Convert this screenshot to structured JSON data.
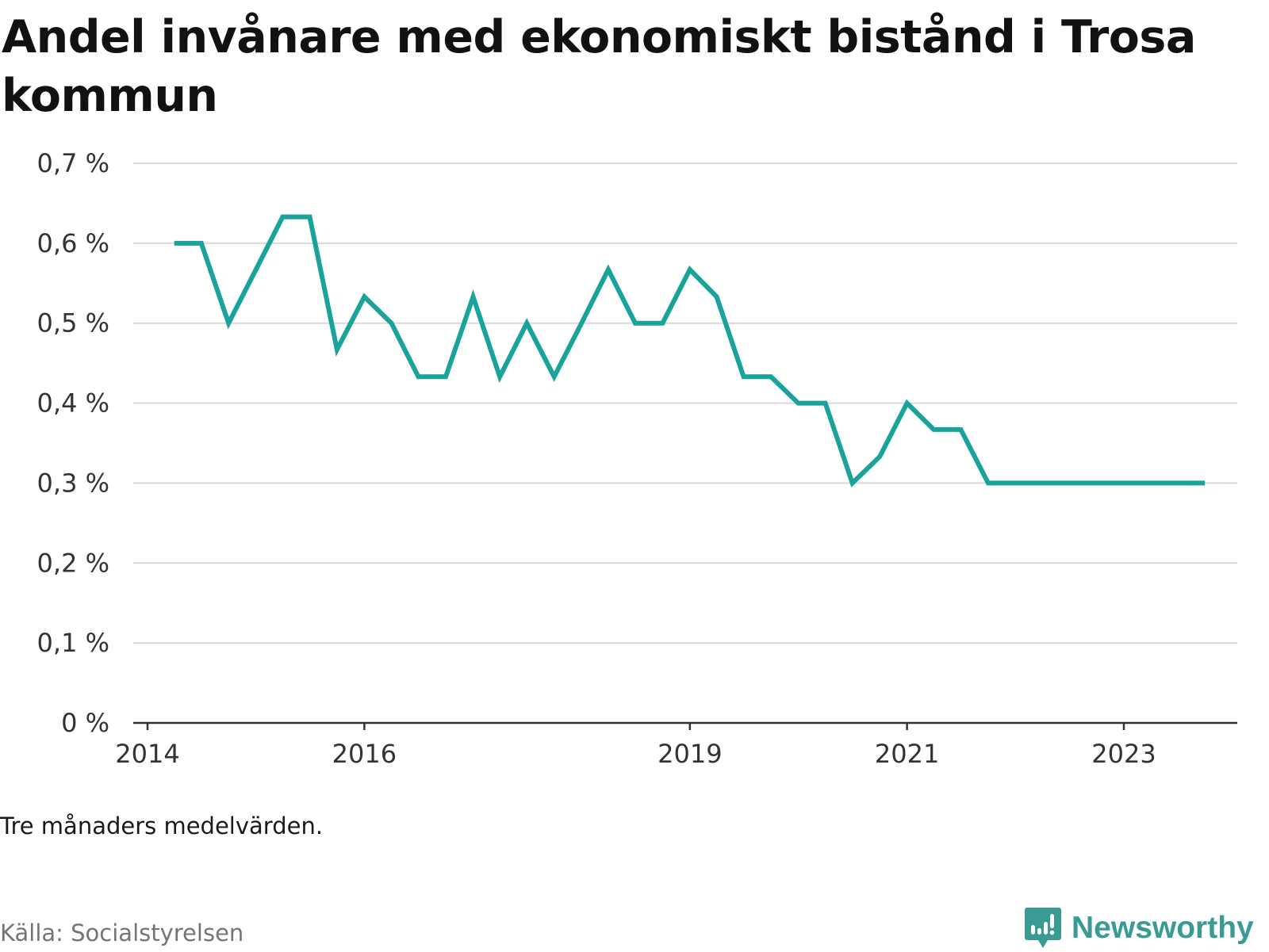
{
  "title": "Andel invånare med ekonomiskt bistånd i Trosa kommun",
  "note": "Tre månaders medelvärden.",
  "source": "Källa: Socialstyrelsen",
  "brand": {
    "name": "Newsworthy",
    "icon": "newsworthy-logo-icon",
    "color": "#3a9a94"
  },
  "colors": {
    "line": "#1aa39a",
    "grid": "#d9d9d9",
    "axis": "#333333"
  },
  "chart_data": {
    "type": "line",
    "title": "Andel invånare med ekonomiskt bistånd i Trosa kommun",
    "xlabel": "",
    "ylabel": "",
    "ylim": [
      0,
      0.7
    ],
    "yticks": [
      0,
      0.1,
      0.2,
      0.3,
      0.4,
      0.5,
      0.6,
      0.7
    ],
    "ytick_labels": [
      "0 %",
      "0,1 %",
      "0,2 %",
      "0,3 %",
      "0,4 %",
      "0,5 %",
      "0,6 %",
      "0,7 %"
    ],
    "xlim": [
      "2014-01-01",
      "2024-01-01"
    ],
    "xticks": [
      "2014-01-01",
      "2016-01-01",
      "2019-01-01",
      "2021-01-01",
      "2023-01-01"
    ],
    "xtick_labels": [
      "2014",
      "2016",
      "2019",
      "2021",
      "2023"
    ],
    "grid": true,
    "series": [
      {
        "x": [
          "2014-04-01",
          "2014-07-01",
          "2014-10-01",
          "2015-01-01",
          "2015-04-01",
          "2015-07-01",
          "2015-10-01",
          "2016-01-01",
          "2016-04-01",
          "2016-07-01",
          "2016-10-01",
          "2017-01-01",
          "2017-04-01",
          "2017-07-01",
          "2017-10-01",
          "2018-01-01",
          "2018-04-01",
          "2018-07-01",
          "2018-10-01",
          "2019-01-01",
          "2019-04-01",
          "2019-07-01",
          "2019-10-01",
          "2020-01-01",
          "2020-04-01",
          "2020-07-01",
          "2020-10-01",
          "2021-01-01",
          "2021-04-01",
          "2021-07-01",
          "2021-10-01",
          "2022-01-01",
          "2022-04-01",
          "2022-07-01",
          "2022-10-01",
          "2023-01-01",
          "2023-04-01",
          "2023-07-01",
          "2023-10-01"
        ],
        "values": [
          0.6,
          0.6,
          0.5,
          0.567,
          0.633,
          0.633,
          0.467,
          0.533,
          0.5,
          0.433,
          0.433,
          0.533,
          0.433,
          0.5,
          0.433,
          0.5,
          0.567,
          0.5,
          0.5,
          0.567,
          0.533,
          0.433,
          0.433,
          0.4,
          0.4,
          0.3,
          0.333,
          0.4,
          0.367,
          0.367,
          0.3,
          0.3,
          0.3,
          0.3,
          0.3,
          0.3,
          0.3,
          0.3,
          0.3
        ]
      }
    ]
  }
}
